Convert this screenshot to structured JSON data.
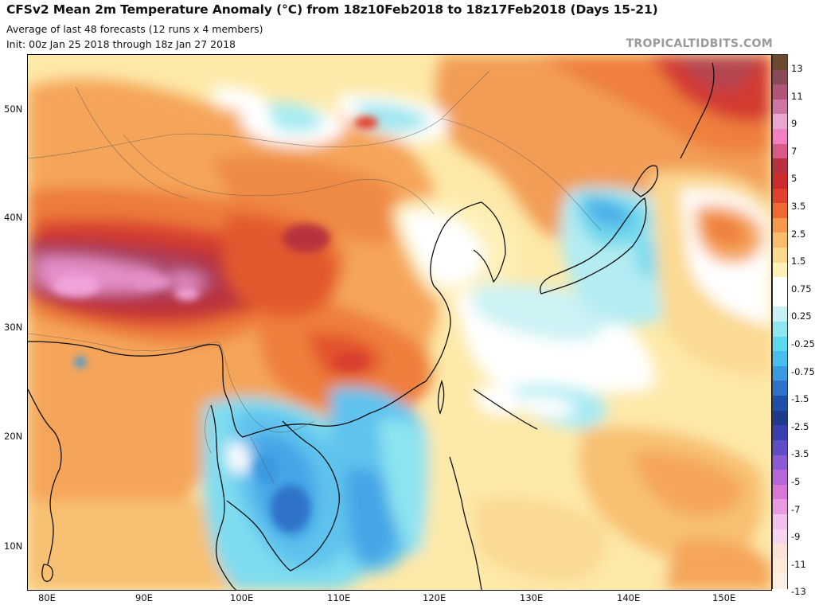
{
  "header": {
    "title": "CFSv2 Mean 2m Temperature Anomaly (°C) from 18z10Feb2018 to 18z17Feb2018 (Days 15-21)",
    "subtitle": "Average of last 48 forecasts (12 runs x 4 members)",
    "init": "Init: 00z Jan 25 2018 through 18z Jan 27 2018",
    "watermark": "TROPICALTIDBITS.COM"
  },
  "map": {
    "region": "East Asia",
    "variable": "2m temperature anomaly",
    "lat_labels": [
      "50N",
      "40N",
      "30N",
      "20N",
      "10N"
    ],
    "lon_labels": [
      "80E",
      "90E",
      "100E",
      "110E",
      "120E",
      "130E",
      "140E",
      "150E"
    ]
  },
  "colorbar": {
    "labels": [
      "13",
      "11",
      "9",
      "7",
      "5",
      "3.5",
      "2.5",
      "1.5",
      "0.75",
      "0.25",
      "-0.25",
      "-0.75",
      "-1.5",
      "-2.5",
      "-3.5",
      "-5",
      "-7",
      "-9",
      "-11",
      "-13"
    ],
    "colors": [
      "#6b4a2e",
      "#8c4a56",
      "#b05575",
      "#cd76a3",
      "#e9a6cf",
      "#f27fbf",
      "#d85a89",
      "#b8313f",
      "#cd2c2c",
      "#e0412c",
      "#ee6a32",
      "#f59a4d",
      "#f8bc6b",
      "#fad88e",
      "#fdf0b9",
      "#ffffff",
      "#ffffff",
      "#c6f0f4",
      "#8ee6ee",
      "#5ed8ec",
      "#48bdee",
      "#3a9ae0",
      "#2e73c9",
      "#1f4fa6",
      "#1d3b8a",
      "#3a3fb2",
      "#5f4fc6",
      "#8a5bd3",
      "#b567da",
      "#d877d6",
      "#e79ae0",
      "#f2c0ea",
      "#f6d3ee",
      "#fbe1d8",
      "#fce9da",
      "#fdeee4"
    ]
  }
}
